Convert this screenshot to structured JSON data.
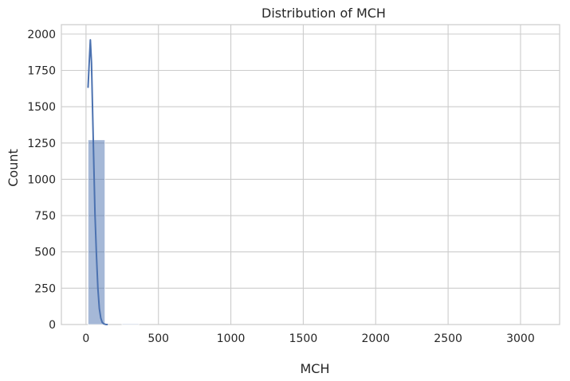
{
  "chart_data": {
    "type": "bar",
    "title": "Distribution of MCH",
    "xlabel": "MCH",
    "ylabel": "Count",
    "xlim": [
      -170,
      3270
    ],
    "ylim": [
      0,
      2065
    ],
    "x_ticks": [
      0,
      500,
      1000,
      1500,
      2000,
      2500,
      3000
    ],
    "x_tick_labels": [
      "0",
      "500",
      "1000",
      "1500",
      "2000",
      "2500",
      "3000"
    ],
    "y_ticks": [
      0,
      250,
      500,
      750,
      1000,
      1250,
      1500,
      1750,
      2000
    ],
    "y_tick_labels": [
      "0",
      "250",
      "500",
      "750",
      "1000",
      "1250",
      "1500",
      "1750",
      "2000"
    ],
    "grid": true,
    "bars": {
      "bin_edges": [
        14,
        131,
        248,
        365,
        482,
        599,
        716,
        833,
        950,
        1067,
        1184,
        1301,
        1418,
        1535,
        1652,
        1769,
        1886,
        2003,
        2120,
        2237,
        2354,
        2471,
        2588,
        2705,
        2822,
        2939,
        3056,
        3114
      ],
      "counts": [
        1272,
        0,
        6,
        0,
        0,
        0,
        0,
        0,
        0,
        0,
        0,
        0,
        0,
        0,
        0,
        0,
        0,
        0,
        0,
        0,
        0,
        0,
        0,
        0,
        0,
        0,
        0
      ]
    },
    "kde": {
      "x": [
        14,
        22,
        30,
        38,
        46,
        54,
        62,
        72,
        82,
        92,
        102,
        112,
        122,
        135,
        150
      ],
      "y": [
        1630,
        1800,
        1960,
        1800,
        1450,
        1100,
        760,
        480,
        250,
        110,
        45,
        15,
        5,
        1,
        0
      ]
    },
    "colors": {
      "bar_fill": "#4c72b0",
      "bar_alpha": 0.5,
      "line": "#4c72b0",
      "grid": "#cccccc",
      "background": "#ffffff"
    }
  }
}
